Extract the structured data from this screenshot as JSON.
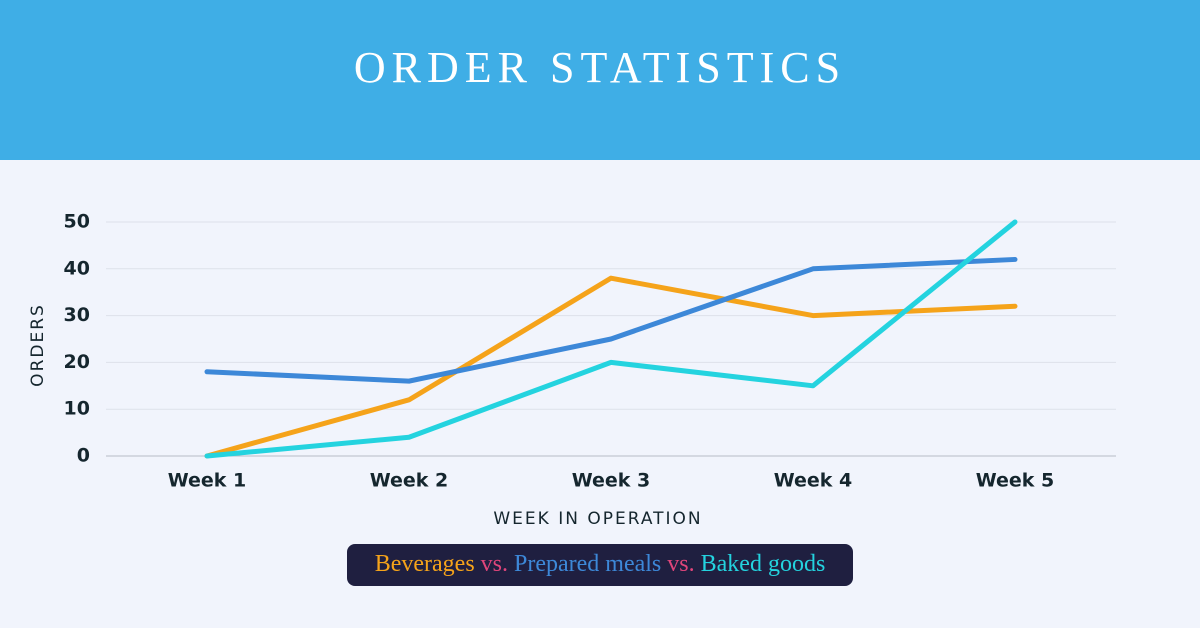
{
  "chart_data": {
    "type": "line",
    "title": "ORDER STATISTICS",
    "x_label": "WEEK IN OPERATION",
    "y_label": "ORDERS",
    "categories": [
      "Week 1",
      "Week 2",
      "Week 3",
      "Week 4",
      "Week 5"
    ],
    "series": [
      {
        "name": "Beverages",
        "color": "#f5a31a",
        "values": [
          0,
          12,
          38,
          30,
          32
        ]
      },
      {
        "name": "Prepared meals",
        "color": "#3d88d8",
        "values": [
          18,
          16,
          25,
          40,
          42
        ]
      },
      {
        "name": "Baked goods",
        "color": "#24d3df",
        "values": [
          0,
          4,
          20,
          15,
          50
        ]
      }
    ],
    "legend_separator": "vs.",
    "ylim": [
      0,
      50
    ],
    "yticks": [
      0,
      10,
      20,
      30,
      40,
      50
    ],
    "grid": true
  }
}
